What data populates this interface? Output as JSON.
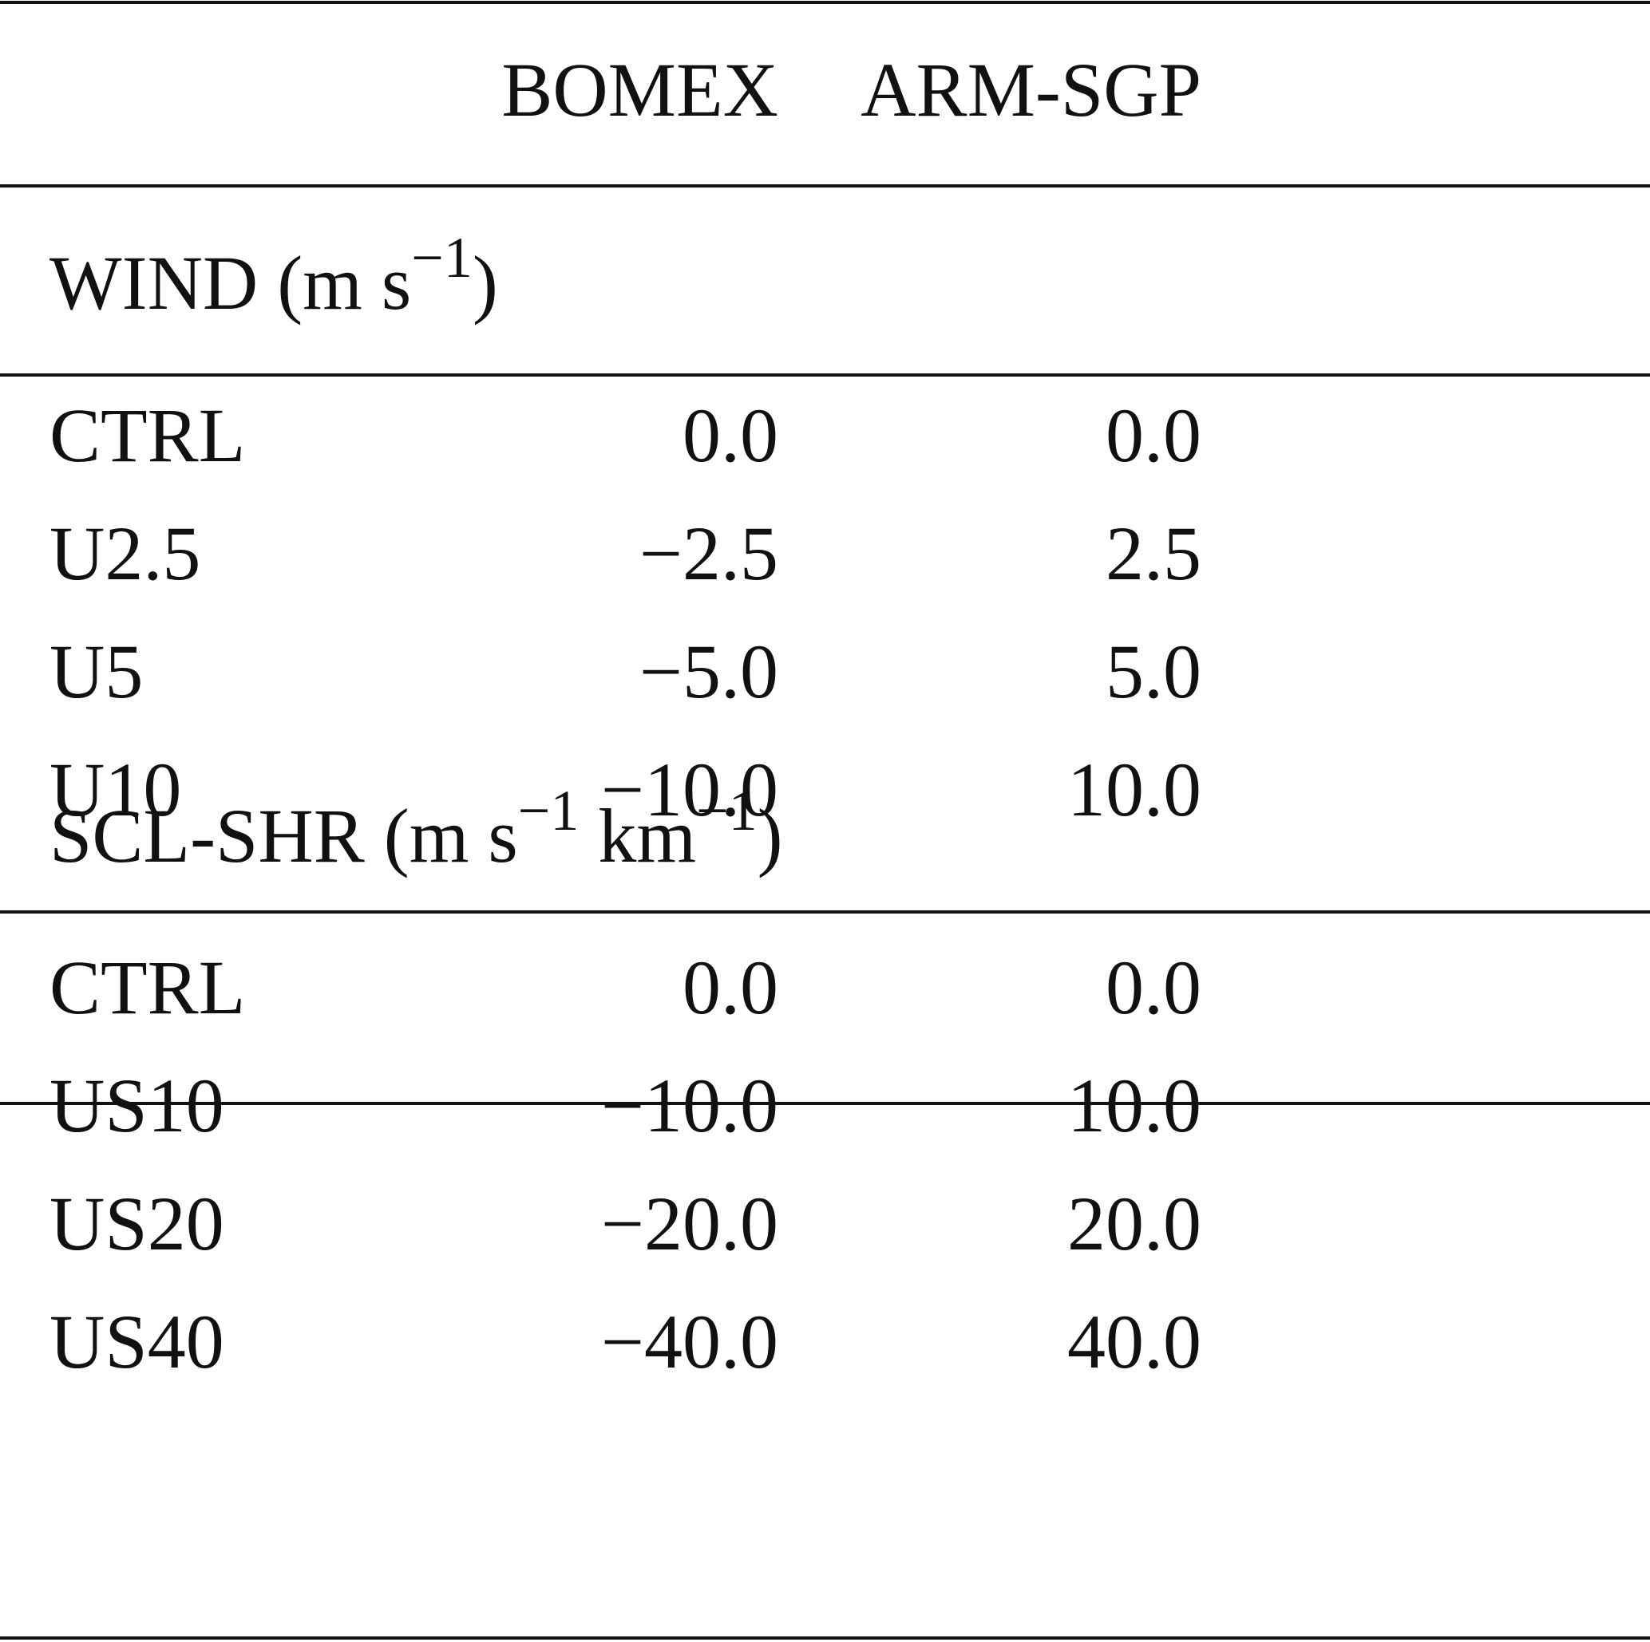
{
  "table": {
    "columns": [
      "BOMEX",
      "ARM-SGP"
    ],
    "sections": [
      {
        "title": [
          "WIND (m s",
          "−1",
          ")"
        ],
        "rows": [
          [
            "CTRL",
            "0.0",
            "0.0"
          ],
          [
            "U2.5",
            "−2.5",
            "2.5"
          ],
          [
            "U5",
            "−5.0",
            "5.0"
          ],
          [
            "U10",
            "−10.0",
            "10.0"
          ]
        ]
      },
      {
        "title": [
          "SCL-SHR (m s",
          "−1",
          " km",
          "−1",
          ")"
        ],
        "rows": [
          [
            "CTRL",
            "0.0",
            "0.0"
          ],
          [
            "US10",
            "−10.0",
            "10.0"
          ],
          [
            "US20",
            "−20.0",
            "20.0"
          ],
          [
            "US40",
            "−40.0",
            "40.0"
          ]
        ]
      }
    ]
  }
}
